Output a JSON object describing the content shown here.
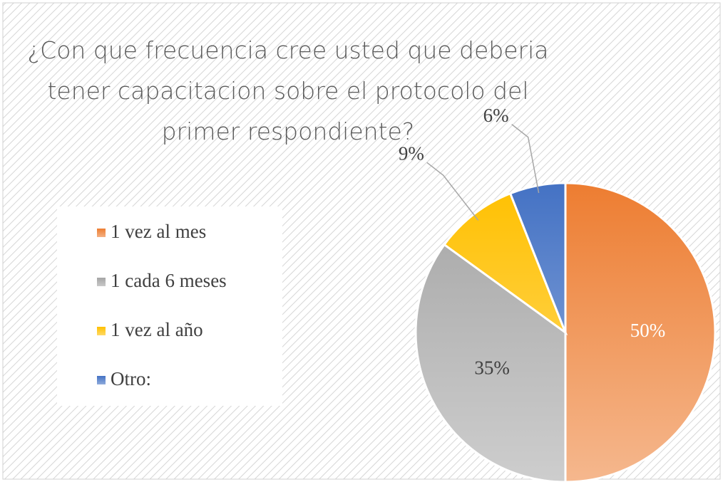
{
  "chart_data": {
    "type": "pie",
    "title": "¿Con que frecuencia cree usted que deberia tener capacitacion sobre el protocolo del primer respondiente?",
    "categories": [
      "1 vez al mes",
      "1 cada 6 meses",
      "1 vez al año",
      "Otro:"
    ],
    "values": [
      50,
      35,
      9,
      6
    ],
    "value_labels": [
      "50%",
      "35%",
      "9%",
      "6%"
    ],
    "colors": [
      "#ED7D31",
      "#A5A5A5",
      "#FFC000",
      "#4472C4"
    ],
    "legend": "left"
  }
}
